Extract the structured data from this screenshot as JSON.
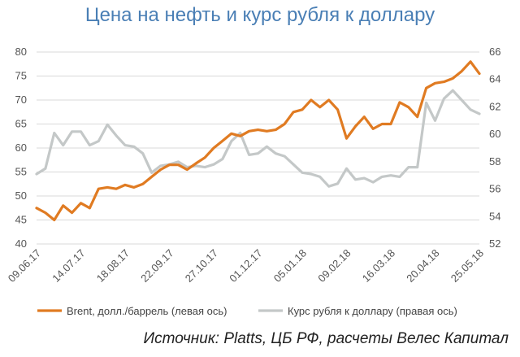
{
  "chart_data": {
    "type": "line",
    "title": "Цена на нефть и курс рубля к доллару",
    "source": "Источник: Platts, ЦБ РФ, расчеты Велес Капитал",
    "left_axis": {
      "min": 40,
      "max": 80,
      "ticks": [
        "40",
        "45",
        "50",
        "55",
        "60",
        "65",
        "70",
        "75",
        "80"
      ]
    },
    "right_axis": {
      "min": 52,
      "max": 66,
      "ticks": [
        "52",
        "54",
        "56",
        "58",
        "60",
        "62",
        "64",
        "66"
      ]
    },
    "x_labels": [
      "09.06.17",
      "14.07.17",
      "18.08.17",
      "22.09.17",
      "27.10.17",
      "01.12.17",
      "05.01.18",
      "09.02.18",
      "16.03.18",
      "20.04.18",
      "25.05.18"
    ],
    "grid": true,
    "legend_position": "bottom",
    "series": [
      {
        "name": "Brent, долл./баррель (левая ось)",
        "axis": "left",
        "color": "#e07b22",
        "values": [
          47.5,
          46.5,
          45.0,
          48.0,
          46.5,
          48.5,
          47.5,
          51.5,
          51.8,
          51.5,
          52.3,
          51.8,
          52.5,
          54.0,
          55.5,
          56.5,
          56.5,
          55.5,
          56.8,
          58.0,
          60.0,
          61.5,
          63.0,
          62.5,
          63.5,
          63.8,
          63.5,
          63.8,
          65.0,
          67.5,
          68.0,
          70.0,
          68.5,
          70.0,
          68.0,
          62.0,
          64.5,
          66.5,
          64.0,
          65.0,
          65.0,
          69.5,
          68.5,
          66.5,
          72.5,
          73.5,
          73.8,
          74.5,
          76.0,
          78.0,
          75.5
        ]
      },
      {
        "name": "Курс рубля к доллару (правая ось)",
        "axis": "right",
        "color": "#c4c8c8",
        "values": [
          57.1,
          57.5,
          60.1,
          59.2,
          60.2,
          60.2,
          59.2,
          59.5,
          60.7,
          59.9,
          59.2,
          59.1,
          58.6,
          57.2,
          57.7,
          57.8,
          58.0,
          57.6,
          57.7,
          57.6,
          57.8,
          58.2,
          59.5,
          60.1,
          58.5,
          58.6,
          59.1,
          58.6,
          58.4,
          57.8,
          57.2,
          57.1,
          56.9,
          56.2,
          56.4,
          57.5,
          56.7,
          56.8,
          56.5,
          56.9,
          57.0,
          56.9,
          57.6,
          57.6,
          62.3,
          61.0,
          62.6,
          63.2,
          62.5,
          61.8,
          61.5
        ]
      }
    ]
  }
}
